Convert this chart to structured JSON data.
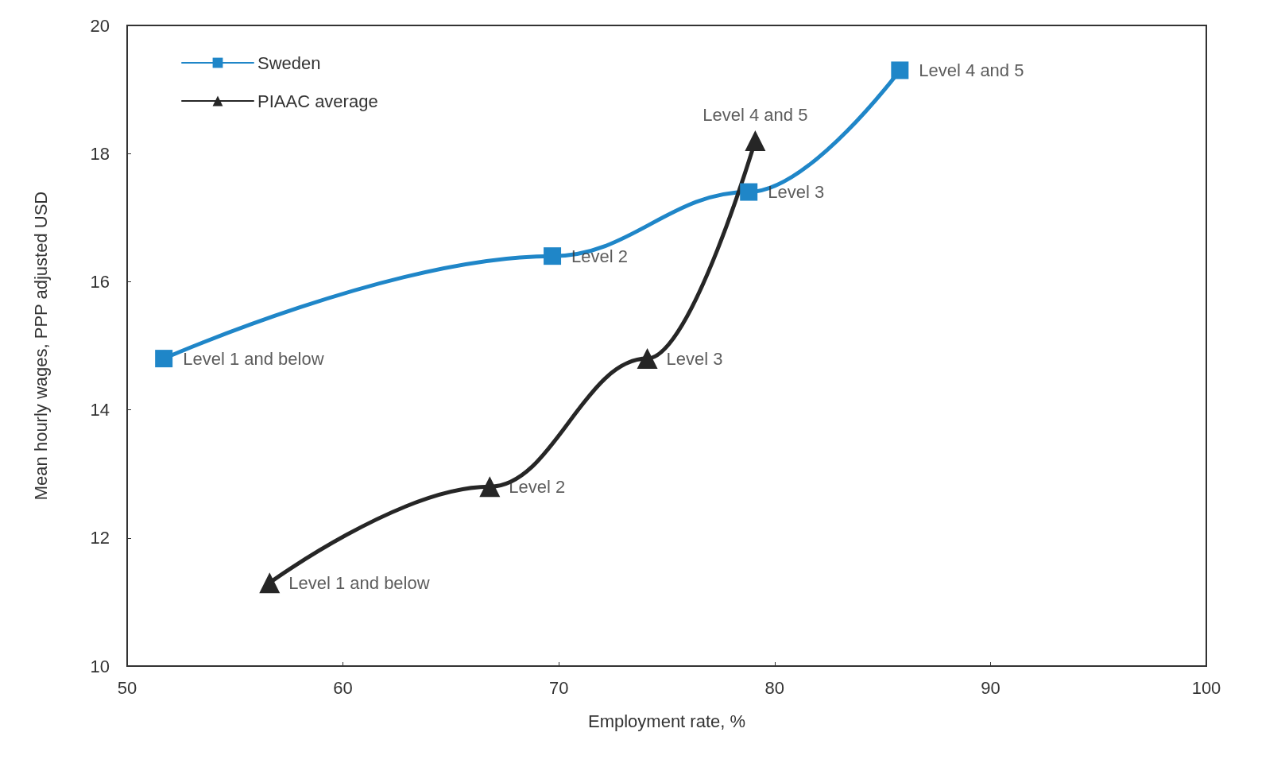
{
  "chart_data": {
    "type": "line",
    "xlabel": "Employment rate, %",
    "ylabel": "Mean hourly wages, PPP adjusted USD",
    "xlim": [
      50,
      100
    ],
    "xticks": [
      50,
      60,
      70,
      80,
      90,
      100
    ],
    "ylim": [
      10,
      20
    ],
    "yticks": [
      10,
      12,
      14,
      16,
      18,
      20
    ],
    "grid": false,
    "legend": "top left",
    "line_style": "solid",
    "series": [
      {
        "name": "Sweden",
        "color": "#1f86c8",
        "marker": "square",
        "x": [
          51.7,
          69.7,
          78.8,
          85.8
        ],
        "values": [
          14.8,
          16.4,
          17.4,
          19.3
        ]
      },
      {
        "name": "PIAAC average",
        "color": "#262626",
        "marker": "triangle",
        "x": [
          56.6,
          66.8,
          74.1,
          79.1
        ],
        "values": [
          11.3,
          12.8,
          14.8,
          18.2
        ]
      }
    ],
    "annotations": [
      {
        "text": "Level 1 and below",
        "x": 51.7,
        "y": 14.8
      },
      {
        "text": "Level 2",
        "x": 69.7,
        "y": 16.4
      },
      {
        "text": "Level 3",
        "x": 78.8,
        "y": 17.4
      },
      {
        "text": "Level 4 and 5",
        "x": 85.8,
        "y": 19.3
      },
      {
        "text": "Level 1 and below",
        "x": 56.6,
        "y": 11.3
      },
      {
        "text": "Level 2",
        "x": 66.8,
        "y": 12.8
      },
      {
        "text": "Level 3",
        "x": 74.1,
        "y": 14.8
      },
      {
        "text": "Level 4 and 5",
        "x": 79.1,
        "y": 18.2
      }
    ]
  }
}
